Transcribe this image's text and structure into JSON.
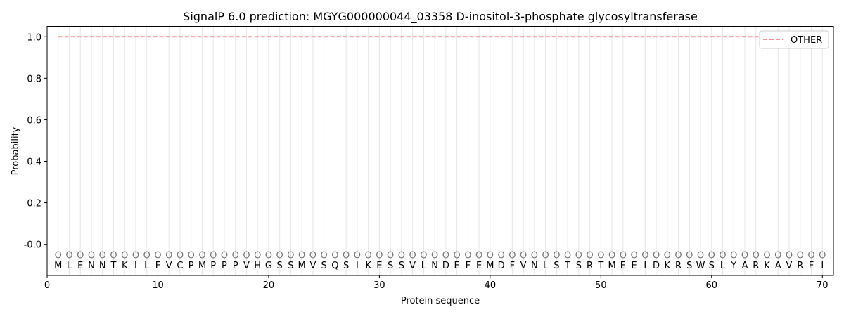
{
  "chart_data": {
    "type": "line",
    "title": "SignalP 6.0 prediction: MGYG000000044_03358 D-inositol-3-phosphate glycosyltransferase",
    "xlabel": "Protein sequence",
    "ylabel": "Probability",
    "xlim": [
      0,
      71
    ],
    "ylim": [
      -0.15,
      1.05
    ],
    "xticks": [
      0,
      10,
      20,
      30,
      40,
      50,
      60,
      70
    ],
    "yticks": [
      "-0.0",
      "0.2",
      "0.4",
      "0.6",
      "0.8",
      "1.0"
    ],
    "ytick_values": [
      0,
      0.2,
      0.4,
      0.6,
      0.8,
      1.0
    ],
    "sequence": [
      "M",
      "L",
      "E",
      "N",
      "N",
      "T",
      "K",
      "I",
      "L",
      "F",
      "V",
      "C",
      "P",
      "M",
      "P",
      "P",
      "P",
      "V",
      "H",
      "G",
      "S",
      "S",
      "M",
      "V",
      "S",
      "Q",
      "S",
      "I",
      "K",
      "E",
      "S",
      "S",
      "V",
      "L",
      "N",
      "D",
      "E",
      "F",
      "E",
      "M",
      "D",
      "F",
      "V",
      "N",
      "L",
      "S",
      "T",
      "S",
      "R",
      "T",
      "M",
      "E",
      "E",
      "I",
      "D",
      "K",
      "R",
      "S",
      "W",
      "S",
      "L",
      "Y",
      "A",
      "R",
      "K",
      "A",
      "V",
      "R",
      "F",
      "I"
    ],
    "predicted_labels": "OOOOOOOOOOOOOOOOOOOOOOOOOOOOOOOOOOOOOOOOOOOOOOOOOOOOOOOOOOOOOOOOOOOOOO",
    "series": [
      {
        "name": "OTHER",
        "color": "#f08080",
        "style": "dashed",
        "x_range": [
          1,
          70
        ],
        "value": 1.0
      }
    ],
    "legend": "top-right",
    "grid": "vertical lines at each residue"
  }
}
